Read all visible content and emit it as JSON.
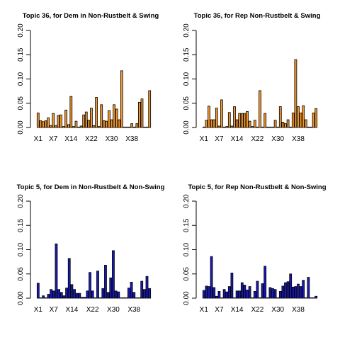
{
  "chart_data": [
    {
      "type": "bar",
      "title": "Topic 36, for Dem in Non-Rustbelt & Swing",
      "bar_color": "#f0962e",
      "ylim": [
        0,
        0.2
      ],
      "yticks": [
        "0.00",
        "0.05",
        "0.10",
        "0.15",
        "0.20"
      ],
      "xtick_labels": [
        "X1",
        "X7",
        "X14",
        "X22",
        "X30",
        "X38"
      ],
      "xtick_indices": [
        1,
        7,
        14,
        22,
        30,
        38
      ],
      "values": [
        0.03,
        0.014,
        0.012,
        0.014,
        0.02,
        0.004,
        0.029,
        0.004,
        0.025,
        0.026,
        0.002,
        0.036,
        0.006,
        0.064,
        0.002,
        0.013,
        0.001,
        0.003,
        0.026,
        0.032,
        0.015,
        0.04,
        0.004,
        0.062,
        0.002,
        0.047,
        0.014,
        0.013,
        0.035,
        0.016,
        0.047,
        0.038,
        0.016,
        0.117,
        0.001,
        0.001,
        0.001,
        0.008,
        0.001,
        0.008,
        0.052,
        0.059,
        0.001,
        0.001,
        0.076
      ]
    },
    {
      "type": "bar",
      "title": "Topic 36, for Rep Non-Rustbelt & Swing",
      "bar_color": "#f0962e",
      "ylim": [
        0,
        0.2
      ],
      "yticks": [
        "0.00",
        "0.05",
        "0.10",
        "0.15",
        "0.20"
      ],
      "xtick_labels": [
        "X1",
        "X7",
        "X14",
        "X22",
        "X30",
        "X38"
      ],
      "xtick_indices": [
        1,
        7,
        14,
        22,
        30,
        38
      ],
      "values": [
        0.001,
        0.015,
        0.044,
        0.016,
        0.016,
        0.04,
        0.003,
        0.057,
        0.001,
        0.002,
        0.031,
        0.003,
        0.043,
        0.016,
        0.029,
        0.029,
        0.029,
        0.033,
        0.013,
        0.002,
        0.015,
        0.001,
        0.076,
        0.001,
        0.029,
        0.001,
        0.001,
        0.001,
        0.015,
        0.001,
        0.043,
        0.011,
        0.008,
        0.016,
        0.001,
        0.03,
        0.14,
        0.043,
        0.03,
        0.045,
        0.016,
        0.001,
        0.001,
        0.03,
        0.039
      ]
    },
    {
      "type": "bar",
      "title": "Topic 5, for Dem in Non-Rustbelt & Non-Swing",
      "bar_color": "#1a1ab4",
      "ylim": [
        0,
        0.2
      ],
      "yticks": [
        "0.00",
        "0.05",
        "0.10",
        "0.15",
        "0.20"
      ],
      "xtick_labels": [
        "X1",
        "X7",
        "X14",
        "X22",
        "X30",
        "X38"
      ],
      "xtick_indices": [
        1,
        7,
        14,
        22,
        30,
        38
      ],
      "values": [
        0.031,
        0.001,
        0.005,
        0.001,
        0.008,
        0.018,
        0.015,
        0.112,
        0.018,
        0.012,
        0.005,
        0.021,
        0.082,
        0.028,
        0.018,
        0.01,
        0.01,
        0.002,
        0.002,
        0.015,
        0.053,
        0.015,
        0.001,
        0.056,
        0.001,
        0.02,
        0.068,
        0.012,
        0.042,
        0.098,
        0.015,
        0.013,
        0.001,
        0.001,
        0.001,
        0.021,
        0.033,
        0.012,
        0.001,
        0.001,
        0.035,
        0.018,
        0.045,
        0.02
      ]
    },
    {
      "type": "bar",
      "title": "Topic 5,  for Rep Non-Rustbelt & Non-Swing",
      "bar_color": "#1a1ab4",
      "ylim": [
        0,
        0.2
      ],
      "yticks": [
        "0.00",
        "0.05",
        "0.10",
        "0.15",
        "0.20"
      ],
      "xtick_labels": [
        "X1",
        "X7",
        "X14",
        "X22",
        "X30",
        "X38"
      ],
      "xtick_indices": [
        1,
        7,
        14,
        22,
        30,
        38
      ],
      "values": [
        0.016,
        0.025,
        0.024,
        0.086,
        0.022,
        0.004,
        0.014,
        0.001,
        0.018,
        0.013,
        0.024,
        0.052,
        0.001,
        0.015,
        0.015,
        0.032,
        0.027,
        0.017,
        0.024,
        0.001,
        0.014,
        0.035,
        0.001,
        0.03,
        0.066,
        0.001,
        0.022,
        0.02,
        0.018,
        0.001,
        0.014,
        0.025,
        0.032,
        0.034,
        0.05,
        0.023,
        0.024,
        0.029,
        0.024,
        0.037,
        0.001,
        0.043,
        0.001,
        0.001,
        0.004
      ]
    }
  ]
}
